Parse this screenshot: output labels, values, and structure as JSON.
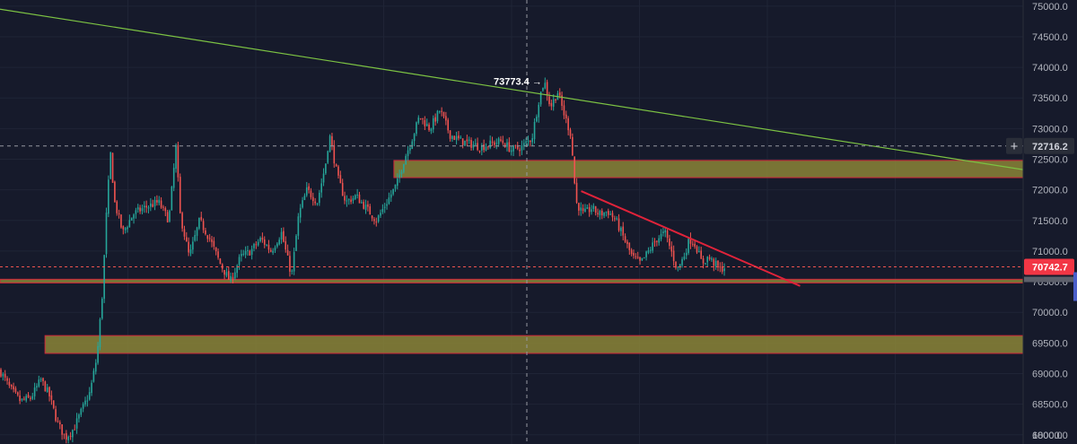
{
  "chart_data": {
    "type": "candlestick",
    "symbol": "",
    "y_axis": {
      "ticks": [
        "75000.0",
        "74500.0",
        "74000.0",
        "73500.0",
        "73000.0",
        "72500.0",
        "72000.0",
        "71500.0",
        "71000.0",
        "70500.0",
        "70000.0",
        "69500.0",
        "69000.0",
        "68500.0",
        "68000.0"
      ],
      "ylim": [
        67850,
        75100
      ]
    },
    "volume_tick": "1000.0",
    "crosshair": {
      "price_label": "72716.2",
      "price": 72716.2
    },
    "last_price": {
      "label": "70742.7",
      "price": 70742.7
    },
    "high_annotation": {
      "label": "73773.4 →",
      "price": 73773.4
    },
    "zones": [
      {
        "name": "resistance-zone",
        "low": 72200,
        "high": 72480,
        "from": 0.385,
        "to": 1.0
      },
      {
        "name": "support-line",
        "low": 70480,
        "high": 70540,
        "from": 0.0,
        "to": 1.0
      },
      {
        "name": "lower-zone",
        "low": 69330,
        "high": 69620,
        "from": 0.044,
        "to": 1.0
      }
    ],
    "trendlines": [
      {
        "name": "green-descending-trendline",
        "color": "#7cc243",
        "from": [
          0.0,
          74950
        ],
        "to": [
          1.0,
          72330
        ]
      },
      {
        "name": "red-descending-trendline",
        "color": "#e0233a",
        "from": [
          0.568,
          71980
        ],
        "to": [
          0.782,
          70430
        ]
      }
    ],
    "price_path": [
      [
        0.0,
        69050
      ],
      [
        0.01,
        68750
      ],
      [
        0.02,
        68550
      ],
      [
        0.03,
        68600
      ],
      [
        0.04,
        68900
      ],
      [
        0.048,
        68650
      ],
      [
        0.056,
        68200
      ],
      [
        0.064,
        67950
      ],
      [
        0.072,
        68100
      ],
      [
        0.08,
        68400
      ],
      [
        0.088,
        68700
      ],
      [
        0.095,
        69300
      ],
      [
        0.1,
        70300
      ],
      [
        0.104,
        71600
      ],
      [
        0.108,
        72600
      ],
      [
        0.112,
        71800
      ],
      [
        0.12,
        71300
      ],
      [
        0.13,
        71600
      ],
      [
        0.14,
        71700
      ],
      [
        0.155,
        71800
      ],
      [
        0.165,
        71500
      ],
      [
        0.172,
        72700
      ],
      [
        0.176,
        71600
      ],
      [
        0.185,
        70900
      ],
      [
        0.195,
        71500
      ],
      [
        0.205,
        71200
      ],
      [
        0.215,
        70800
      ],
      [
        0.225,
        70500
      ],
      [
        0.235,
        70900
      ],
      [
        0.245,
        71000
      ],
      [
        0.255,
        71200
      ],
      [
        0.265,
        71000
      ],
      [
        0.275,
        71300
      ],
      [
        0.285,
        70600
      ],
      [
        0.292,
        71600
      ],
      [
        0.3,
        72000
      ],
      [
        0.31,
        71800
      ],
      [
        0.318,
        72400
      ],
      [
        0.322,
        72900
      ],
      [
        0.33,
        72200
      ],
      [
        0.338,
        71800
      ],
      [
        0.348,
        71900
      ],
      [
        0.358,
        71700
      ],
      [
        0.368,
        71500
      ],
      [
        0.378,
        71800
      ],
      [
        0.388,
        72100
      ],
      [
        0.395,
        72500
      ],
      [
        0.402,
        72800
      ],
      [
        0.41,
        73200
      ],
      [
        0.42,
        73000
      ],
      [
        0.43,
        73300
      ],
      [
        0.44,
        72900
      ],
      [
        0.45,
        72800
      ],
      [
        0.46,
        72750
      ],
      [
        0.47,
        72700
      ],
      [
        0.48,
        72750
      ],
      [
        0.49,
        72800
      ],
      [
        0.5,
        72650
      ],
      [
        0.51,
        72700
      ],
      [
        0.52,
        72850
      ],
      [
        0.527,
        73500
      ],
      [
        0.532,
        73780
      ],
      [
        0.538,
        73350
      ],
      [
        0.545,
        73600
      ],
      [
        0.552,
        73200
      ],
      [
        0.558,
        72900
      ],
      [
        0.563,
        71800
      ],
      [
        0.57,
        71600
      ],
      [
        0.578,
        71700
      ],
      [
        0.586,
        71600
      ],
      [
        0.594,
        71650
      ],
      [
        0.602,
        71500
      ],
      [
        0.61,
        71200
      ],
      [
        0.618,
        70900
      ],
      [
        0.626,
        70800
      ],
      [
        0.634,
        71000
      ],
      [
        0.642,
        71200
      ],
      [
        0.65,
        71300
      ],
      [
        0.656,
        71000
      ],
      [
        0.662,
        70700
      ],
      [
        0.668,
        70900
      ],
      [
        0.674,
        71200
      ],
      [
        0.68,
        71100
      ],
      [
        0.686,
        70800
      ],
      [
        0.692,
        70900
      ],
      [
        0.698,
        70800
      ],
      [
        0.704,
        70700
      ],
      [
        0.709,
        70750
      ]
    ]
  }
}
